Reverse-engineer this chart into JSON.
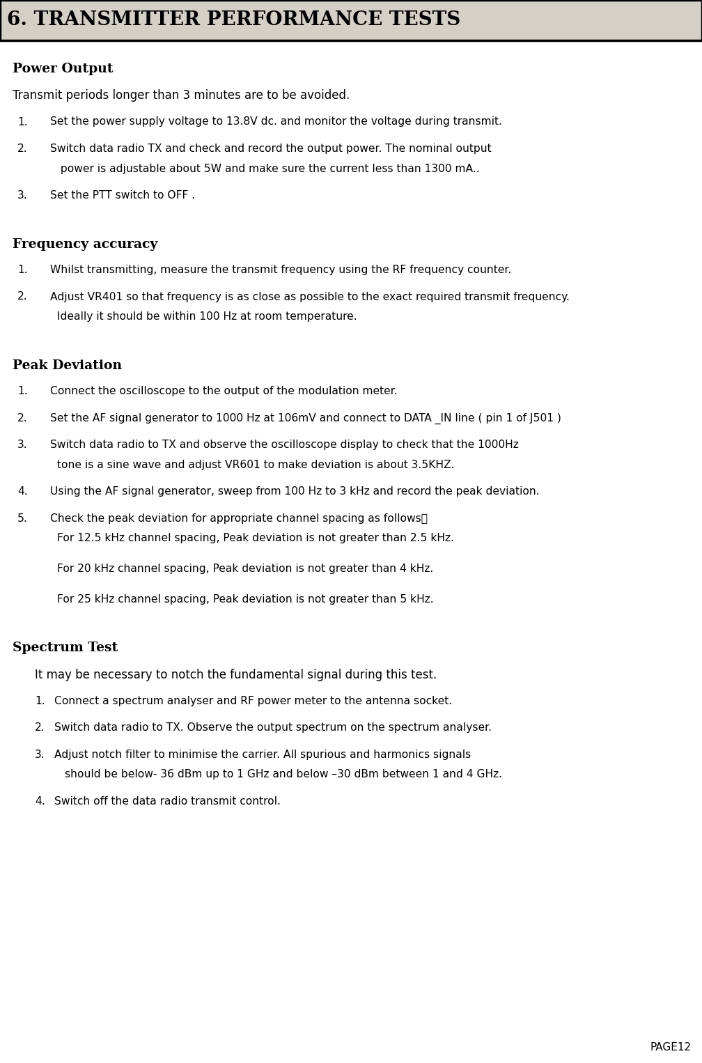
{
  "title": "6. TRANSMITTER PERFORMANCE TESTS",
  "bg_title": "#d4d0c8",
  "bg_page": "#ffffff",
  "page_label": "PAGE12",
  "sections": [
    {
      "heading": "Power Output",
      "intro": {
        "text": "Transmit periods longer than 3 minutes are to be avoided.",
        "bold": false,
        "indent": false
      },
      "items": [
        {
          "num": "1.",
          "text_lines": [
            "Set the power supply voltage to 13.8V dc. and monitor the voltage during transmit."
          ],
          "cont_lines": []
        },
        {
          "num": "2.",
          "text_lines": [
            "Switch data radio TX and check and record the output power. The nominal output"
          ],
          "cont_lines": [
            " power is adjustable about 5W and make sure the current less than 1300 mA.."
          ]
        },
        {
          "num": "3.",
          "text_lines": [
            "Set the PTT switch to OFF ."
          ],
          "cont_lines": []
        }
      ]
    },
    {
      "heading": "Frequency accuracy",
      "intro": null,
      "items": [
        {
          "num": "1.",
          "text_lines": [
            "Whilst transmitting, measure the transmit frequency using the RF frequency counter."
          ],
          "cont_lines": []
        },
        {
          "num": "2.",
          "text_lines": [
            "Adjust VR401 so that frequency is as close as possible to the exact required transmit frequency."
          ],
          "cont_lines": [
            "Ideally it should be within 100 Hz at room temperature."
          ]
        }
      ]
    },
    {
      "heading": "Peak Deviation",
      "intro": null,
      "items": [
        {
          "num": "1.",
          "text_lines": [
            "Connect the oscilloscope to the output of the modulation meter."
          ],
          "cont_lines": []
        },
        {
          "num": "2.",
          "text_lines": [
            "Set the AF signal generator to 1000 Hz at 106mV and connect to DATA _IN line ( pin 1 of J501 )"
          ],
          "cont_lines": []
        },
        {
          "num": "3.",
          "text_lines": [
            "Switch data radio to TX and observe the oscilloscope display to check that the 1000Hz"
          ],
          "cont_lines": [
            "tone is a sine wave and adjust VR601 to make deviation is about 3.5KHZ."
          ]
        },
        {
          "num": "4.",
          "text_lines": [
            "Using the AF signal generator, sweep from 100 Hz to 3 kHz and record the peak deviation."
          ],
          "cont_lines": []
        },
        {
          "num": "5.",
          "text_lines": [
            "Check the peak deviation for appropriate channel spacing as follows："
          ],
          "cont_lines": [],
          "sub_items": [
            "For 12.5 kHz channel spacing, Peak deviation is not greater than 2.5 kHz.",
            "For 20 kHz channel spacing, Peak deviation is not greater than 4 kHz.",
            "For 25 kHz channel spacing, Peak deviation is not greater than 5 kHz."
          ]
        }
      ]
    },
    {
      "heading": "Spectrum Test",
      "intro": {
        "text": "It may be necessary to notch the fundamental signal during this test.",
        "bold": false,
        "indent": true
      },
      "items": [
        {
          "num": "1.",
          "text_lines": [
            "Connect a spectrum analyser and RF power meter to the antenna socket."
          ],
          "cont_lines": []
        },
        {
          "num": "2.",
          "text_lines": [
            "Switch data radio to TX. Observe the output spectrum on the spectrum analyser."
          ],
          "cont_lines": []
        },
        {
          "num": "3.",
          "text_lines": [
            "Adjust notch filter to minimise the carrier. All spurious and harmonics signals"
          ],
          "cont_lines": [
            "should be below- 36 dBm up to 1 GHz and below –30 dBm between 1 and 4 GHz."
          ],
          "cont_extra_indent": true
        },
        {
          "num": "4.",
          "text_lines": [
            "Switch off the data radio transmit control."
          ],
          "cont_lines": []
        }
      ]
    }
  ]
}
